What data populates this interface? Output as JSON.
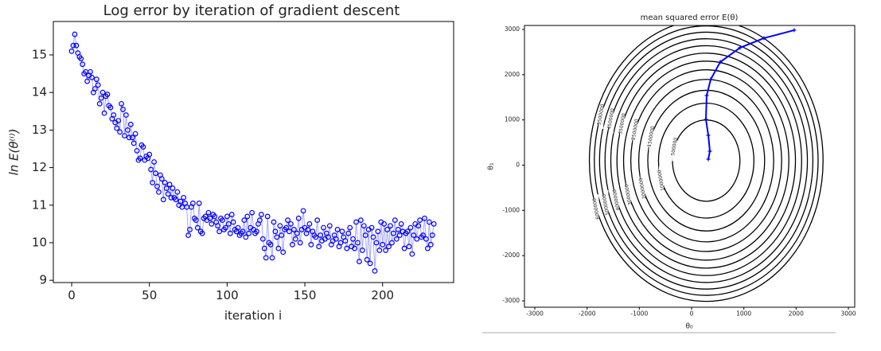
{
  "chart_data": [
    {
      "type": "line",
      "title": "Log error by iteration of gradient descent",
      "x_label": "iteration i",
      "y_label": "ln E(θ⁽ⁱ⁾)",
      "x": [
        0,
        1,
        2,
        3,
        4,
        5,
        6,
        7,
        8,
        9,
        10,
        11,
        12,
        13,
        14,
        15,
        16,
        17,
        18,
        19,
        20,
        21,
        22,
        23,
        24,
        25,
        26,
        27,
        28,
        29,
        30,
        31,
        32,
        33,
        34,
        35,
        36,
        37,
        38,
        39,
        40,
        41,
        42,
        43,
        44,
        45,
        46,
        47,
        48,
        49,
        50,
        51,
        52,
        53,
        54,
        55,
        56,
        57,
        58,
        59,
        60,
        61,
        62,
        63,
        64,
        65,
        66,
        67,
        68,
        69,
        70,
        71,
        72,
        73,
        74,
        75,
        76,
        77,
        78,
        79,
        80,
        81,
        82,
        83,
        84,
        85,
        86,
        87,
        88,
        89,
        90,
        91,
        92,
        93,
        94,
        95,
        96,
        97,
        98,
        99,
        100,
        101,
        102,
        103,
        104,
        105,
        106,
        107,
        108,
        109,
        110,
        111,
        112,
        113,
        114,
        115,
        116,
        117,
        118,
        119,
        120,
        121,
        122,
        123,
        124,
        125,
        126,
        127,
        128,
        129,
        130,
        131,
        132,
        133,
        134,
        135,
        136,
        137,
        138,
        139,
        140,
        141,
        142,
        143,
        144,
        145,
        146,
        147,
        148,
        149,
        150,
        151,
        152,
        153,
        154,
        155,
        156,
        157,
        158,
        159,
        160,
        161,
        162,
        163,
        164,
        165,
        166,
        167,
        168,
        169,
        170,
        171,
        172,
        173,
        174,
        175,
        176,
        177,
        178,
        179,
        180,
        181,
        182,
        183,
        184,
        185,
        186,
        187,
        188,
        189,
        190,
        191,
        192,
        193,
        194,
        195,
        196,
        197,
        198,
        199,
        200,
        201,
        202,
        203,
        204,
        205,
        206,
        207,
        208,
        209,
        210,
        211,
        212,
        213,
        214,
        215,
        216,
        217,
        218,
        219,
        220,
        221,
        222,
        223,
        224,
        225,
        226,
        227,
        228,
        229,
        230,
        231,
        232,
        233
      ],
      "series": [
        {
          "color": "#0000ff",
          "values": [
            15.1,
            15.25,
            15.55,
            15.25,
            15.05,
            14.95,
            14.9,
            14.75,
            14.5,
            14.55,
            14.3,
            14.45,
            14.55,
            14.4,
            14.0,
            14.1,
            14.35,
            14.2,
            13.7,
            13.85,
            14.0,
            13.45,
            13.9,
            13.95,
            13.65,
            13.6,
            13.3,
            13.4,
            13.2,
            13.05,
            13.25,
            12.95,
            13.7,
            13.55,
            12.85,
            13.4,
            13.0,
            12.8,
            13.15,
            12.8,
            12.65,
            12.9,
            12.45,
            12.2,
            12.25,
            12.6,
            12.55,
            12.2,
            12.3,
            12.25,
            12.35,
            11.95,
            11.6,
            12.15,
            11.85,
            11.5,
            11.35,
            11.8,
            11.7,
            11.15,
            11.6,
            11.45,
            11.3,
            11.55,
            11.2,
            11.45,
            11.2,
            11.15,
            11.35,
            11.0,
            11.1,
            10.95,
            11.2,
            11.05,
            10.95,
            10.2,
            10.35,
            10.95,
            11.05,
            10.65,
            10.6,
            10.4,
            11.05,
            10.3,
            10.25,
            10.65,
            10.7,
            10.6,
            10.8,
            10.65,
            10.5,
            10.75,
            10.7,
            10.55,
            10.45,
            10.3,
            10.65,
            10.6,
            10.35,
            10.4,
            10.7,
            10.5,
            10.25,
            10.75,
            10.55,
            10.35,
            10.3,
            10.4,
            10.2,
            10.25,
            10.3,
            10.6,
            10.15,
            10.7,
            10.25,
            10.4,
            10.8,
            10.35,
            10.25,
            10.3,
            10.5,
            10.6,
            10.75,
            10.1,
            9.85,
            9.6,
            10.7,
            10.0,
            9.95,
            9.6,
            10.55,
            10.3,
            10.15,
            9.85,
            10.45,
            10.2,
            9.75,
            10.35,
            10.4,
            10.6,
            10.3,
            10.5,
            9.95,
            10.35,
            10.1,
            10.25,
            10.65,
            10.0,
            10.35,
            10.85,
            10.4,
            10.25,
            10.35,
            10.5,
            9.95,
            10.3,
            10.2,
            10.15,
            10.6,
            9.9,
            10.2,
            10.05,
            10.4,
            10.1,
            10.25,
            10.15,
            10.45,
            9.95,
            10.05,
            10.2,
            10.1,
            10.35,
            9.9,
            10.0,
            10.3,
            10.15,
            10.05,
            9.85,
            10.25,
            10.4,
            9.9,
            10.1,
            9.85,
            10.55,
            10.0,
            9.5,
            10.6,
            9.8,
            10.45,
            10.2,
            9.55,
            10.35,
            9.45,
            10.4,
            10.15,
            9.25,
            10.0,
            10.3,
            9.8,
            10.55,
            9.95,
            10.5,
            9.8,
            10.35,
            9.9,
            10.45,
            10.0,
            10.25,
            10.6,
            10.1,
            10.35,
            10.2,
            10.5,
            10.3,
            9.85,
            10.25,
            10.3,
            9.9,
            10.4,
            9.7,
            10.2,
            10.5,
            10.1,
            10.45,
            10.6,
            10.15,
            10.2,
            10.65,
            10.1,
            9.85,
            10.55,
            9.95,
            10.2,
            10.5
          ]
        }
      ],
      "xlim": [
        -11.8,
        245.7
      ],
      "ylim": [
        8.94,
        15.89
      ],
      "xticks": [
        0,
        50,
        100,
        150,
        200
      ],
      "yticks": [
        9,
        10,
        11,
        12,
        13,
        14,
        15
      ]
    },
    {
      "type": "contour",
      "title": "mean squared error E(θ)",
      "x_label": "θ₀",
      "y_label": "θ₁",
      "levels": [
        500000,
        1000000,
        1500000,
        2000000,
        2500000,
        3000000,
        3500000,
        4000000,
        4500000,
        5000000,
        5500000,
        6000000
      ],
      "line_color": "#000000",
      "surface": {
        "center": [
          280,
          100
        ],
        "coef": [
          1.2,
          0.62
        ]
      },
      "path": {
        "color": "#0000ff",
        "x": [
          1963,
          1385,
          928,
          548,
          365,
          289,
          274,
          320,
          350,
          320
        ],
        "y": [
          2984,
          2808,
          2597,
          2280,
          1893,
          1540,
          1012,
          660,
          308,
          132
        ]
      },
      "xlim": [
        -3198,
        3122
      ],
      "ylim": [
        -3141,
        3088
      ],
      "xticks": [
        -3000,
        -2000,
        -1000,
        0,
        1000,
        2000,
        3000
      ],
      "yticks": [
        -3000,
        -2000,
        -1000,
        0,
        1000,
        2000,
        3000
      ]
    }
  ]
}
